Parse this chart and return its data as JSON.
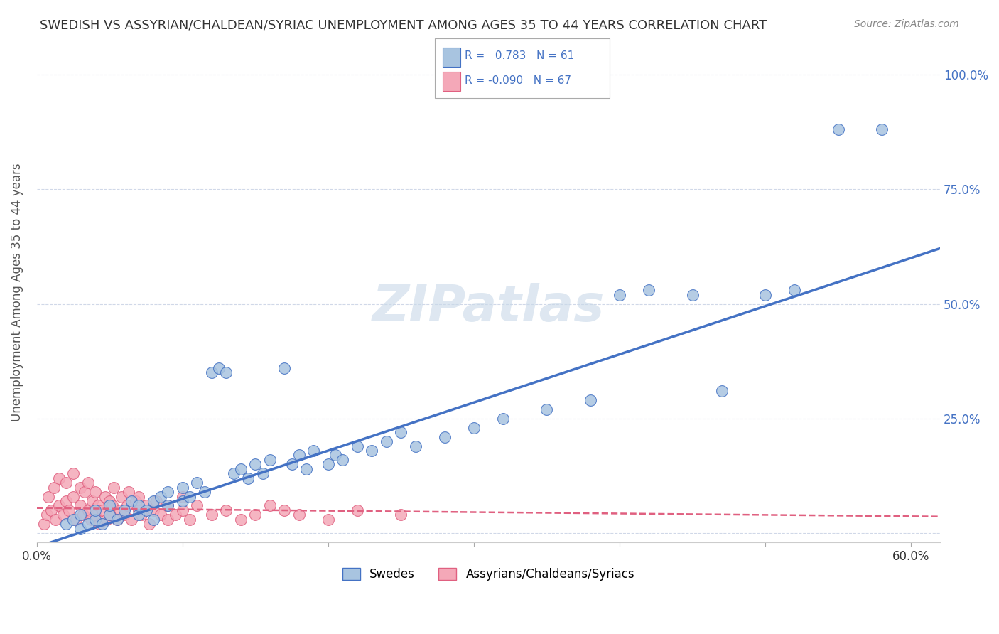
{
  "title": "SWEDISH VS ASSYRIAN/CHALDEAN/SYRIAC UNEMPLOYMENT AMONG AGES 35 TO 44 YEARS CORRELATION CHART",
  "source": "Source: ZipAtlas.com",
  "ylabel": "Unemployment Among Ages 35 to 44 years",
  "y_ticks": [
    0.0,
    0.25,
    0.5,
    0.75,
    1.0
  ],
  "y_tick_labels": [
    "",
    "25.0%",
    "50.0%",
    "75.0%",
    "100.0%"
  ],
  "xlim": [
    0.0,
    0.62
  ],
  "ylim": [
    -0.02,
    1.07
  ],
  "R_swedes": 0.783,
  "N_swedes": 61,
  "R_assyrian": -0.09,
  "N_assyrian": 67,
  "color_swedes": "#a8c4e0",
  "color_assyrian": "#f4a8b8",
  "color_swedes_line": "#4472c4",
  "color_assyrian_line": "#e06080",
  "legend_text_color": "#4472c4",
  "watermark_color": "#c8d8e8",
  "background_color": "#ffffff",
  "grid_color": "#d0d8e8",
  "blue_slope": 1.05,
  "blue_intercept": -0.03,
  "pink_slope": -0.03,
  "pink_intercept": 0.055,
  "swedes_x": [
    0.02,
    0.025,
    0.03,
    0.03,
    0.035,
    0.04,
    0.04,
    0.045,
    0.05,
    0.05,
    0.055,
    0.06,
    0.065,
    0.07,
    0.07,
    0.075,
    0.08,
    0.08,
    0.085,
    0.09,
    0.09,
    0.1,
    0.1,
    0.105,
    0.11,
    0.115,
    0.12,
    0.125,
    0.13,
    0.135,
    0.14,
    0.145,
    0.15,
    0.155,
    0.16,
    0.17,
    0.175,
    0.18,
    0.185,
    0.19,
    0.2,
    0.205,
    0.21,
    0.22,
    0.23,
    0.24,
    0.25,
    0.26,
    0.28,
    0.3,
    0.32,
    0.35,
    0.38,
    0.4,
    0.42,
    0.45,
    0.47,
    0.5,
    0.52,
    0.55,
    0.58
  ],
  "swedes_y": [
    0.02,
    0.03,
    0.01,
    0.04,
    0.02,
    0.03,
    0.05,
    0.02,
    0.04,
    0.06,
    0.03,
    0.05,
    0.07,
    0.04,
    0.06,
    0.05,
    0.07,
    0.03,
    0.08,
    0.06,
    0.09,
    0.07,
    0.1,
    0.08,
    0.11,
    0.09,
    0.35,
    0.36,
    0.35,
    0.13,
    0.14,
    0.12,
    0.15,
    0.13,
    0.16,
    0.36,
    0.15,
    0.17,
    0.14,
    0.18,
    0.15,
    0.17,
    0.16,
    0.19,
    0.18,
    0.2,
    0.22,
    0.19,
    0.21,
    0.23,
    0.25,
    0.27,
    0.29,
    0.52,
    0.53,
    0.52,
    0.31,
    0.52,
    0.53,
    0.88,
    0.88
  ],
  "assyrian_x": [
    0.005,
    0.007,
    0.008,
    0.01,
    0.012,
    0.013,
    0.015,
    0.015,
    0.018,
    0.02,
    0.02,
    0.022,
    0.025,
    0.025,
    0.027,
    0.03,
    0.03,
    0.032,
    0.033,
    0.035,
    0.035,
    0.037,
    0.038,
    0.04,
    0.04,
    0.042,
    0.043,
    0.045,
    0.047,
    0.048,
    0.05,
    0.05,
    0.052,
    0.053,
    0.055,
    0.057,
    0.058,
    0.06,
    0.062,
    0.063,
    0.065,
    0.068,
    0.07,
    0.07,
    0.072,
    0.075,
    0.077,
    0.08,
    0.082,
    0.085,
    0.09,
    0.09,
    0.095,
    0.1,
    0.1,
    0.105,
    0.11,
    0.12,
    0.13,
    0.14,
    0.15,
    0.16,
    0.17,
    0.18,
    0.2,
    0.22,
    0.25
  ],
  "assyrian_y": [
    0.02,
    0.04,
    0.08,
    0.05,
    0.1,
    0.03,
    0.06,
    0.12,
    0.04,
    0.07,
    0.11,
    0.05,
    0.08,
    0.13,
    0.03,
    0.06,
    0.1,
    0.04,
    0.09,
    0.05,
    0.11,
    0.03,
    0.07,
    0.04,
    0.09,
    0.06,
    0.02,
    0.05,
    0.08,
    0.03,
    0.07,
    0.04,
    0.06,
    0.1,
    0.03,
    0.05,
    0.08,
    0.04,
    0.06,
    0.09,
    0.03,
    0.07,
    0.05,
    0.08,
    0.04,
    0.06,
    0.02,
    0.05,
    0.07,
    0.04,
    0.03,
    0.06,
    0.04,
    0.05,
    0.08,
    0.03,
    0.06,
    0.04,
    0.05,
    0.03,
    0.04,
    0.06,
    0.05,
    0.04,
    0.03,
    0.05,
    0.04
  ]
}
